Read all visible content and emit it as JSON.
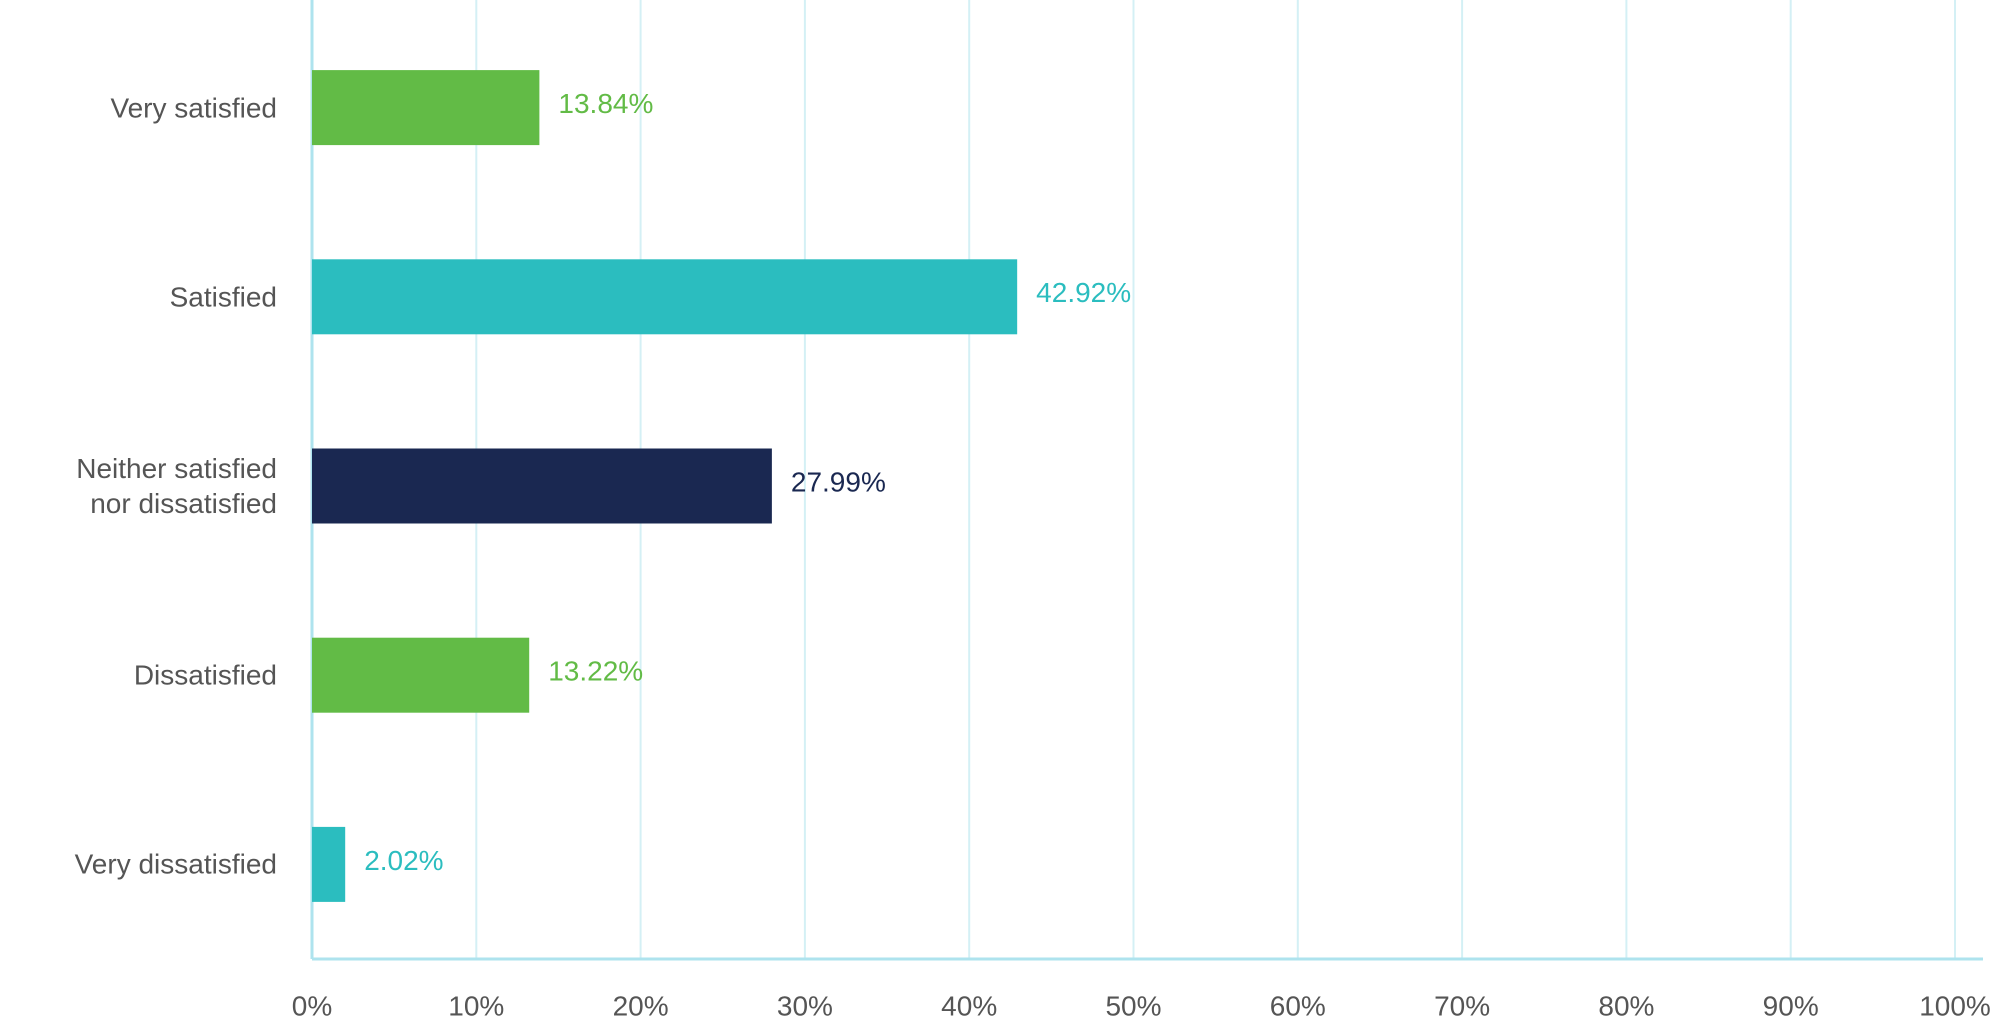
{
  "chart_data": {
    "type": "hbar",
    "categories": [
      "Very satisfied",
      "Satisfied",
      "Neither satisfied\nnor dissatisfied",
      "Dissatisfied",
      "Very dissatisfied"
    ],
    "values": [
      13.84,
      42.92,
      27.99,
      13.22,
      2.02
    ],
    "value_labels": [
      "13.84%",
      "42.92%",
      "27.99%",
      "13.22%",
      "2.02%"
    ],
    "colors": [
      "#62bb46",
      "#2bbdbf",
      "#1a2851",
      "#62bb46",
      "#2bbdbf"
    ],
    "xlim": [
      0,
      100
    ],
    "xticks": [
      {
        "value": 0,
        "label": "0%"
      },
      {
        "value": 10,
        "label": "10%"
      },
      {
        "value": 20,
        "label": "20%"
      },
      {
        "value": 30,
        "label": "30%"
      },
      {
        "value": 40,
        "label": "40%"
      },
      {
        "value": 50,
        "label": "50%"
      },
      {
        "value": 60,
        "label": "60%"
      },
      {
        "value": 70,
        "label": "70%"
      },
      {
        "value": 80,
        "label": "80%"
      },
      {
        "value": 90,
        "label": "90%"
      },
      {
        "value": 100,
        "label": "100%"
      }
    ],
    "grid": true
  }
}
